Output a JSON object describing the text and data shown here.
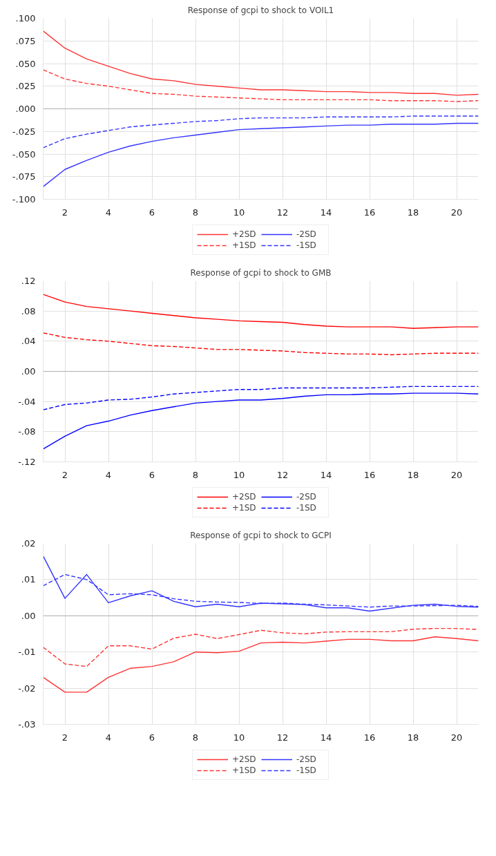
{
  "chart_data": [
    {
      "type": "line",
      "title": "Response of gcpi to shock to VOIL1",
      "x": [
        1,
        2,
        3,
        4,
        5,
        6,
        7,
        8,
        9,
        10,
        11,
        12,
        13,
        14,
        15,
        16,
        17,
        18,
        19,
        20,
        21
      ],
      "xlim": [
        1,
        21
      ],
      "xticks": [
        2,
        4,
        6,
        8,
        10,
        12,
        14,
        16,
        18,
        20
      ],
      "ylim": [
        -0.1,
        0.1
      ],
      "yticks": [
        {
          "value": -0.1,
          "label": "-.100"
        },
        {
          "value": -0.075,
          "label": "-.075"
        },
        {
          "value": -0.05,
          "label": "-.050"
        },
        {
          "value": -0.025,
          "label": "-.025"
        },
        {
          "value": 0,
          "label": ".000"
        },
        {
          "value": 0.025,
          "label": ".025"
        },
        {
          "value": 0.05,
          "label": ".050"
        },
        {
          "value": 0.075,
          "label": ".075"
        },
        {
          "value": 0.1,
          "label": ".100"
        }
      ],
      "grid": true,
      "legend": "bottom",
      "marker": "none",
      "ref_lines": [
        {
          "axis": "y",
          "value": 0,
          "color": "#b0b0b0"
        }
      ],
      "series": [
        {
          "name": "+2SD",
          "color": "#ff3333",
          "line_style": "solid",
          "values": [
            0.086,
            0.067,
            0.055,
            0.047,
            0.039,
            0.033,
            0.031,
            0.027,
            0.025,
            0.023,
            0.021,
            0.021,
            0.02,
            0.019,
            0.019,
            0.018,
            0.018,
            0.017,
            0.017,
            0.015,
            0.016
          ]
        },
        {
          "name": "-2SD",
          "color": "#3333ff",
          "line_style": "solid",
          "values": [
            -0.086,
            -0.067,
            -0.057,
            -0.048,
            -0.041,
            -0.036,
            -0.032,
            -0.029,
            -0.026,
            -0.023,
            -0.022,
            -0.021,
            -0.02,
            -0.019,
            -0.018,
            -0.018,
            -0.017,
            -0.017,
            -0.017,
            -0.016,
            -0.016
          ]
        },
        {
          "name": "+1SD",
          "color": "#ff3333",
          "line_style": "dashed",
          "values": [
            0.043,
            0.033,
            0.028,
            0.025,
            0.021,
            0.017,
            0.016,
            0.014,
            0.013,
            0.012,
            0.011,
            0.01,
            0.01,
            0.01,
            0.01,
            0.01,
            0.009,
            0.009,
            0.009,
            0.008,
            0.009
          ]
        },
        {
          "name": "-1SD",
          "color": "#3333ff",
          "line_style": "dashed",
          "values": [
            -0.043,
            -0.033,
            -0.028,
            -0.024,
            -0.02,
            -0.018,
            -0.016,
            -0.014,
            -0.013,
            -0.011,
            -0.01,
            -0.01,
            -0.01,
            -0.009,
            -0.009,
            -0.009,
            -0.009,
            -0.008,
            -0.008,
            -0.008,
            -0.008
          ]
        }
      ]
    },
    {
      "type": "line",
      "title": "Response of gcpi to shock to GMB",
      "x": [
        1,
        2,
        3,
        4,
        5,
        6,
        7,
        8,
        9,
        10,
        11,
        12,
        13,
        14,
        15,
        16,
        17,
        18,
        19,
        20,
        21
      ],
      "xlim": [
        1,
        21
      ],
      "xticks": [
        2,
        4,
        6,
        8,
        10,
        12,
        14,
        16,
        18,
        20
      ],
      "ylim": [
        -0.12,
        0.12
      ],
      "yticks": [
        {
          "value": -0.12,
          "label": "-.12"
        },
        {
          "value": -0.08,
          "label": "-.08"
        },
        {
          "value": -0.04,
          "label": "-.04"
        },
        {
          "value": 0,
          "label": ".00"
        },
        {
          "value": 0.04,
          "label": ".04"
        },
        {
          "value": 0.08,
          "label": ".08"
        },
        {
          "value": 0.12,
          "label": ".12"
        }
      ],
      "grid": true,
      "legend": "bottom",
      "marker": "none",
      "ref_lines": [
        {
          "axis": "y",
          "value": 0,
          "color": "#b0b0b0"
        }
      ],
      "series": [
        {
          "name": "+2SD",
          "color": "#ff0000",
          "line_style": "solid",
          "values": [
            0.102,
            0.092,
            0.086,
            0.083,
            0.08,
            0.077,
            0.074,
            0.071,
            0.069,
            0.067,
            0.066,
            0.065,
            0.062,
            0.06,
            0.059,
            0.059,
            0.059,
            0.057,
            0.058,
            0.059,
            0.059
          ]
        },
        {
          "name": "-2SD",
          "color": "#0000ff",
          "line_style": "solid",
          "values": [
            -0.103,
            -0.086,
            -0.072,
            -0.066,
            -0.058,
            -0.052,
            -0.047,
            -0.042,
            -0.04,
            -0.038,
            -0.038,
            -0.036,
            -0.033,
            -0.031,
            -0.031,
            -0.03,
            -0.03,
            -0.029,
            -0.029,
            -0.029,
            -0.03
          ]
        },
        {
          "name": "+1SD",
          "color": "#ff0000",
          "line_style": "dashed",
          "values": [
            0.051,
            0.045,
            0.042,
            0.04,
            0.037,
            0.034,
            0.033,
            0.031,
            0.029,
            0.029,
            0.028,
            0.027,
            0.025,
            0.024,
            0.023,
            0.023,
            0.022,
            0.023,
            0.024,
            0.024,
            0.024
          ]
        },
        {
          "name": "-1SD",
          "color": "#0000ff",
          "line_style": "dashed",
          "values": [
            -0.051,
            -0.044,
            -0.042,
            -0.038,
            -0.037,
            -0.034,
            -0.03,
            -0.028,
            -0.026,
            -0.024,
            -0.024,
            -0.022,
            -0.022,
            -0.022,
            -0.022,
            -0.022,
            -0.021,
            -0.02,
            -0.02,
            -0.02,
            -0.02
          ]
        }
      ]
    },
    {
      "type": "line",
      "title": "Response of gcpi to shock to GCPI",
      "x": [
        1,
        2,
        3,
        4,
        5,
        6,
        7,
        8,
        9,
        10,
        11,
        12,
        13,
        14,
        15,
        16,
        17,
        18,
        19,
        20,
        21
      ],
      "xlim": [
        1,
        21
      ],
      "xticks": [
        2,
        4,
        6,
        8,
        10,
        12,
        14,
        16,
        18,
        20
      ],
      "ylim": [
        -0.03,
        0.02
      ],
      "yticks": [
        {
          "value": -0.03,
          "label": "-.03"
        },
        {
          "value": -0.02,
          "label": "-.02"
        },
        {
          "value": -0.01,
          "label": "-.01"
        },
        {
          "value": 0,
          "label": ".00"
        },
        {
          "value": 0.01,
          "label": ".01"
        },
        {
          "value": 0.02,
          "label": ".02"
        }
      ],
      "grid": true,
      "legend": "bottom",
      "marker": "none",
      "ref_lines": [
        {
          "axis": "y",
          "value": 0,
          "color": "#b0b0b0"
        }
      ],
      "series": [
        {
          "name": "+2SD",
          "color": "#ff3333",
          "line_style": "solid",
          "values": [
            -0.017,
            -0.0211,
            -0.0211,
            -0.017,
            -0.0145,
            -0.014,
            -0.0127,
            -0.01,
            -0.0102,
            -0.0098,
            -0.0075,
            -0.0073,
            -0.0075,
            -0.007,
            -0.0065,
            -0.0065,
            -0.0069,
            -0.0069,
            -0.0058,
            -0.0063,
            -0.0069
          ]
        },
        {
          "name": "-2SD",
          "color": "#3333ff",
          "line_style": "solid",
          "values": [
            0.0165,
            0.0048,
            0.0114,
            0.0036,
            0.0055,
            0.0069,
            0.004,
            0.0025,
            0.0032,
            0.0025,
            0.0035,
            0.0033,
            0.0031,
            0.0022,
            0.0022,
            0.0013,
            0.0021,
            0.0029,
            0.0032,
            0.0026,
            0.0024
          ]
        },
        {
          "name": "+1SD",
          "color": "#ff3333",
          "line_style": "dashed",
          "values": [
            -0.0087,
            -0.0133,
            -0.014,
            -0.0083,
            -0.0083,
            -0.0092,
            -0.0062,
            -0.0051,
            -0.0063,
            -0.0052,
            -0.004,
            -0.0047,
            -0.005,
            -0.0045,
            -0.0044,
            -0.0044,
            -0.0044,
            -0.0037,
            -0.0035,
            -0.0035,
            -0.0038
          ]
        },
        {
          "name": "-1SD",
          "color": "#3333ff",
          "line_style": "dashed",
          "values": [
            0.0083,
            0.0114,
            0.01,
            0.0058,
            0.0061,
            0.0058,
            0.0047,
            0.004,
            0.0038,
            0.0037,
            0.0034,
            0.0035,
            0.0032,
            0.003,
            0.0027,
            0.0024,
            0.0027,
            0.0027,
            0.0028,
            0.0029,
            0.0026
          ]
        }
      ]
    }
  ]
}
